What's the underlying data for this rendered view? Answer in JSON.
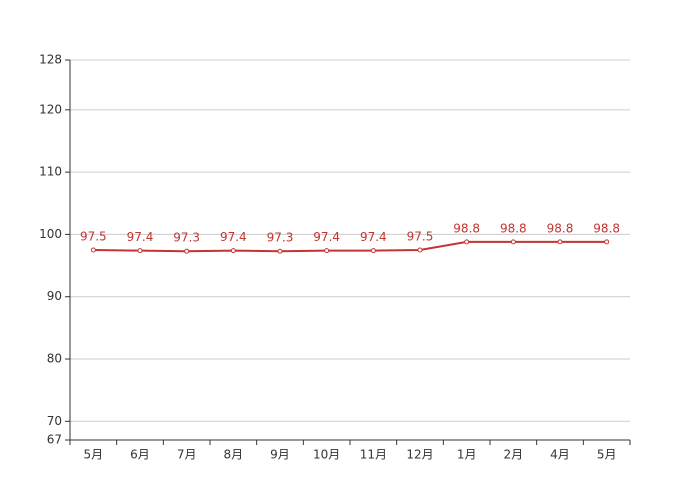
{
  "chart_data": {
    "type": "line",
    "categories": [
      "5月",
      "6月",
      "7月",
      "8月",
      "9月",
      "10月",
      "11月",
      "12月",
      "1月",
      "2月",
      "4月",
      "5月"
    ],
    "series": [
      {
        "color": "#c23531",
        "values": [
          97.5,
          97.4,
          97.3,
          97.4,
          97.3,
          97.4,
          97.4,
          97.5,
          98.8,
          98.8,
          98.8,
          98.8
        ]
      }
    ],
    "ylim": [
      67,
      128
    ],
    "yticks": [
      67,
      70,
      80,
      90,
      100,
      110,
      120,
      128
    ],
    "grid": true,
    "data_labels": true
  }
}
